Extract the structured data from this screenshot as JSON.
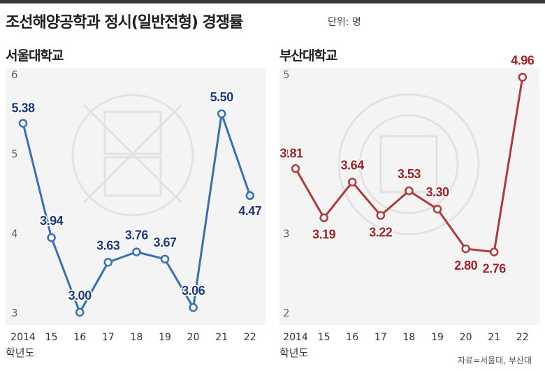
{
  "title": "조선해양공학과 정시(일반전형) 경쟁률",
  "unit": "단위: 명",
  "source": "자료=서울대, 부산대",
  "xlabel": "학년도",
  "colors": {
    "seoul": "#3a6fb0",
    "seoul_label": "#1d3a7a",
    "busan": "#b03a3a",
    "busan_label": "#a31f24"
  },
  "chart_data": [
    {
      "type": "line",
      "title": "서울대학교",
      "categories": [
        "2014",
        "15",
        "16",
        "17",
        "18",
        "19",
        "20",
        "21",
        "22"
      ],
      "values": [
        5.38,
        3.94,
        3.0,
        3.63,
        3.76,
        3.67,
        3.06,
        5.5,
        4.47
      ],
      "value_labels": [
        "5.38",
        "3.94",
        "3.00",
        "3.63",
        "3.76",
        "3.67",
        "3.06",
        "5.50",
        "4.47"
      ],
      "ylim": [
        3,
        6
      ],
      "yticks": [
        "3",
        "4",
        "5",
        "6"
      ],
      "ylabel": ""
    },
    {
      "type": "line",
      "title": "부산대학교",
      "categories": [
        "2014",
        "15",
        "16",
        "17",
        "18",
        "19",
        "20",
        "21",
        "22"
      ],
      "values": [
        3.81,
        3.19,
        3.64,
        3.22,
        3.53,
        3.3,
        2.8,
        2.76,
        4.96
      ],
      "value_labels": [
        "3.81",
        "3.19",
        "3.64",
        "3.22",
        "3.53",
        "3.30",
        "2.80",
        "2.76",
        "4.96"
      ],
      "ylim": [
        2,
        5
      ],
      "yticks": [
        "2",
        "3",
        "4",
        "5"
      ],
      "ylabel": ""
    }
  ]
}
